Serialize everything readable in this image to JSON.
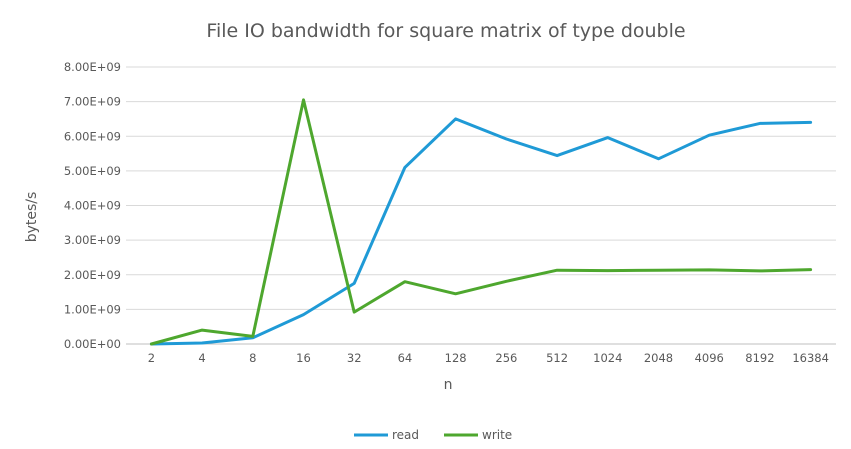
{
  "chart_data": {
    "type": "line",
    "title": "File IO bandwidth for square matrix of type double",
    "xlabel": "n",
    "ylabel": "bytes/s",
    "categories": [
      "2",
      "4",
      "8",
      "16",
      "32",
      "64",
      "128",
      "256",
      "512",
      "1024",
      "2048",
      "4096",
      "8192",
      "16384"
    ],
    "ylim": [
      0,
      8000000000
    ],
    "yticks": [
      "0.00E+00",
      "1.00E+09",
      "2.00E+09",
      "3.00E+09",
      "4.00E+09",
      "5.00E+09",
      "6.00E+09",
      "7.00E+09",
      "8.00E+09"
    ],
    "grid": true,
    "legend_position": "bottom",
    "series": [
      {
        "name": "read",
        "color": "#1f9ad6",
        "values": [
          0,
          30000000,
          180000000,
          850000000,
          1750000000,
          5100000000,
          6500000000,
          5920000000,
          5440000000,
          5960000000,
          5350000000,
          6030000000,
          6370000000,
          6400000000
        ]
      },
      {
        "name": "write",
        "color": "#4ea72e",
        "values": [
          0,
          400000000,
          220000000,
          7050000000,
          920000000,
          1800000000,
          1450000000,
          1810000000,
          2130000000,
          2120000000,
          2130000000,
          2140000000,
          2110000000,
          2150000000
        ]
      }
    ]
  }
}
